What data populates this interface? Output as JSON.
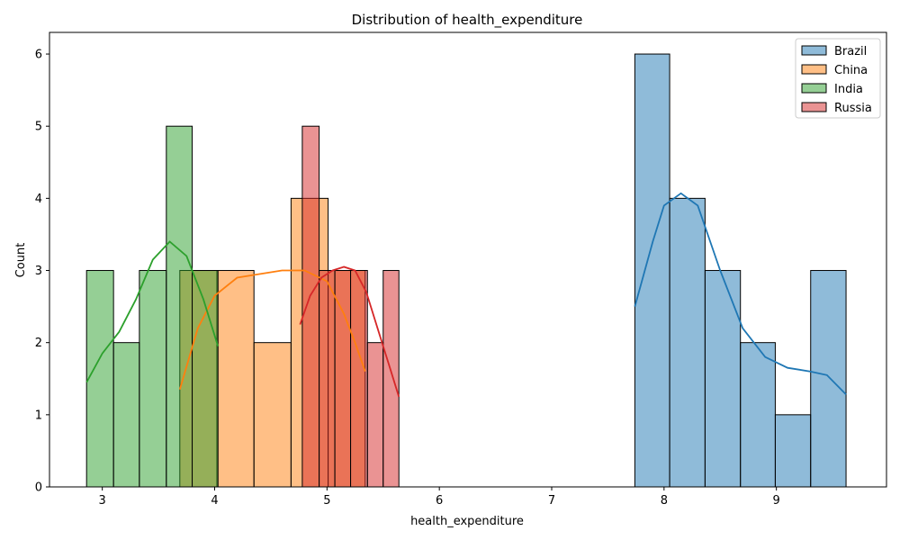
{
  "chart_data": {
    "type": "bar",
    "title": "Distribution of health_expenditure",
    "xlabel": "health_expenditure",
    "ylabel": "Count",
    "xlim": [
      2.53,
      9.98
    ],
    "ylim": [
      0,
      6.3
    ],
    "xticks": [
      "3",
      "4",
      "5",
      "6",
      "7",
      "8",
      "9"
    ],
    "yticks": [
      "0",
      "1",
      "2",
      "3",
      "4",
      "5",
      "6"
    ],
    "legend_position": "top-right",
    "grid": false,
    "series": [
      {
        "name": "Brazil",
        "color": "#1f77b4",
        "bins": [
          {
            "x0": 7.74,
            "x1": 8.05,
            "count": 6
          },
          {
            "x0": 8.05,
            "x1": 8.365,
            "count": 4
          },
          {
            "x0": 8.365,
            "x1": 8.68,
            "count": 3
          },
          {
            "x0": 8.68,
            "x1": 8.99,
            "count": 2
          },
          {
            "x0": 8.99,
            "x1": 9.305,
            "count": 1
          },
          {
            "x0": 9.305,
            "x1": 9.62,
            "count": 3
          }
        ],
        "kde": [
          [
            7.74,
            2.5
          ],
          [
            7.9,
            3.4
          ],
          [
            8.0,
            3.9
          ],
          [
            8.15,
            4.07
          ],
          [
            8.3,
            3.9
          ],
          [
            8.5,
            3.0
          ],
          [
            8.7,
            2.2
          ],
          [
            8.9,
            1.8
          ],
          [
            9.1,
            1.65
          ],
          [
            9.3,
            1.6
          ],
          [
            9.45,
            1.55
          ],
          [
            9.62,
            1.28
          ]
        ]
      },
      {
        "name": "China",
        "color": "#ff7f0e",
        "bins": [
          {
            "x0": 3.69,
            "x1": 4.02,
            "count": 3
          },
          {
            "x0": 4.02,
            "x1": 4.35,
            "count": 3
          },
          {
            "x0": 4.35,
            "x1": 4.68,
            "count": 2
          },
          {
            "x0": 4.68,
            "x1": 5.01,
            "count": 4
          },
          {
            "x0": 5.01,
            "x1": 5.34,
            "count": 3
          }
        ],
        "kde": [
          [
            3.69,
            1.35
          ],
          [
            3.85,
            2.2
          ],
          [
            4.0,
            2.65
          ],
          [
            4.2,
            2.9
          ],
          [
            4.4,
            2.95
          ],
          [
            4.6,
            3.0
          ],
          [
            4.8,
            3.0
          ],
          [
            5.0,
            2.85
          ],
          [
            5.15,
            2.4
          ],
          [
            5.25,
            2.0
          ],
          [
            5.34,
            1.6
          ]
        ]
      },
      {
        "name": "India",
        "color": "#2ca02c",
        "bins": [
          {
            "x0": 2.86,
            "x1": 3.1,
            "count": 3
          },
          {
            "x0": 3.1,
            "x1": 3.33,
            "count": 2
          },
          {
            "x0": 3.33,
            "x1": 3.57,
            "count": 3
          },
          {
            "x0": 3.57,
            "x1": 3.8,
            "count": 5
          },
          {
            "x0": 3.8,
            "x1": 4.03,
            "count": 3
          }
        ],
        "kde": [
          [
            2.86,
            1.45
          ],
          [
            3.0,
            1.85
          ],
          [
            3.15,
            2.15
          ],
          [
            3.3,
            2.6
          ],
          [
            3.45,
            3.15
          ],
          [
            3.6,
            3.4
          ],
          [
            3.75,
            3.2
          ],
          [
            3.9,
            2.6
          ],
          [
            4.03,
            1.95
          ]
        ]
      },
      {
        "name": "Russia",
        "color": "#d62728",
        "bins": [
          {
            "x0": 4.78,
            "x1": 4.93,
            "count": 5
          },
          {
            "x0": 4.93,
            "x1": 5.07,
            "count": 3
          },
          {
            "x0": 5.07,
            "x1": 5.21,
            "count": 3
          },
          {
            "x0": 5.21,
            "x1": 5.36,
            "count": 3
          },
          {
            "x0": 5.36,
            "x1": 5.5,
            "count": 2
          },
          {
            "x0": 5.5,
            "x1": 5.64,
            "count": 3
          }
        ],
        "kde": [
          [
            4.76,
            2.25
          ],
          [
            4.85,
            2.65
          ],
          [
            4.95,
            2.9
          ],
          [
            5.05,
            3.0
          ],
          [
            5.15,
            3.05
          ],
          [
            5.25,
            3.0
          ],
          [
            5.35,
            2.7
          ],
          [
            5.45,
            2.2
          ],
          [
            5.55,
            1.7
          ],
          [
            5.64,
            1.25
          ]
        ]
      }
    ]
  }
}
